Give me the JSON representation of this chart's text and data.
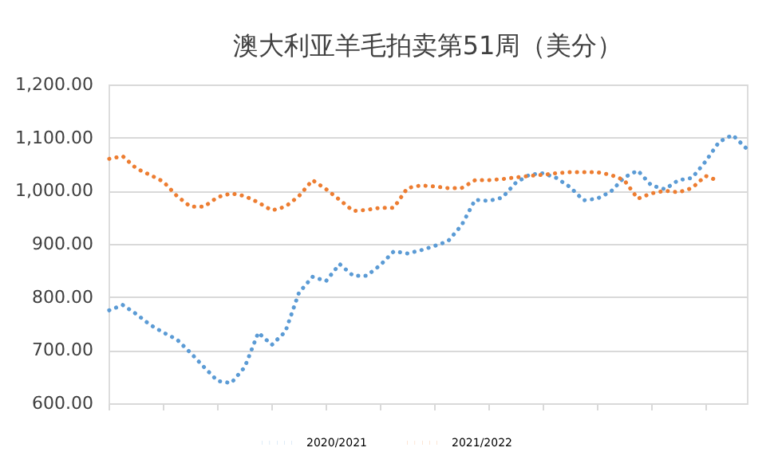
{
  "chart_data": {
    "type": "line",
    "title": "澳大利亚羊毛拍卖第51周（美分）",
    "categories": [
      null,
      null,
      null,
      null,
      null,
      null,
      null,
      null,
      null,
      null,
      null,
      null,
      null,
      null,
      null,
      null,
      null,
      null,
      null,
      null,
      null,
      null,
      null,
      null,
      null,
      null,
      null,
      null,
      null,
      null,
      null,
      null,
      null,
      null,
      null,
      null,
      null,
      null,
      null,
      null,
      null,
      null,
      null,
      null,
      null,
      null,
      null,
      null
    ],
    "series": [
      {
        "name": "2020/2021",
        "color": "#5b9bd5",
        "values": [
          775,
          785,
          768,
          748,
          733,
          720,
          695,
          668,
          642,
          638,
          668,
          733,
          710,
          735,
          808,
          838,
          830,
          862,
          840,
          840,
          860,
          886,
          882,
          888,
          896,
          905,
          935,
          983,
          981,
          987,
          1015,
          1030,
          1033,
          1024,
          1007,
          982,
          985,
          998,
          1025,
          1038,
          1010,
          1003,
          1020,
          1024,
          1055,
          1092,
          1105,
          1080
        ]
      },
      {
        "name": "2021/2022",
        "color": "#ed7d31",
        "values": [
          1060,
          1065,
          1042,
          1030,
          1017,
          990,
          970,
          970,
          988,
          995,
          990,
          978,
          963,
          970,
          990,
          1020,
          1003,
          983,
          962,
          964,
          968,
          968,
          1005,
          1010,
          1008,
          1005,
          1005,
          1020,
          1020,
          1022,
          1025,
          1028,
          1030,
          1033,
          1035,
          1035,
          1035,
          1030,
          1020,
          985,
          995,
          1000,
          997,
          1005,
          1028,
          1018,
          null,
          null
        ]
      }
    ],
    "ylim": [
      600,
      1200
    ],
    "yticks": [
      {
        "value": 600,
        "label": "600.00"
      },
      {
        "value": 700,
        "label": "700.00"
      },
      {
        "value": 800,
        "label": "800.00"
      },
      {
        "value": 900,
        "label": "900.00"
      },
      {
        "value": 1000,
        "label": "1,000.00"
      },
      {
        "value": 1100,
        "label": "1,100.00"
      },
      {
        "value": 1200,
        "label": "1,200.00"
      }
    ],
    "grid": "y",
    "legend": "bottom",
    "tick_labels": "y",
    "marker": "none",
    "line_style": "dotted"
  }
}
